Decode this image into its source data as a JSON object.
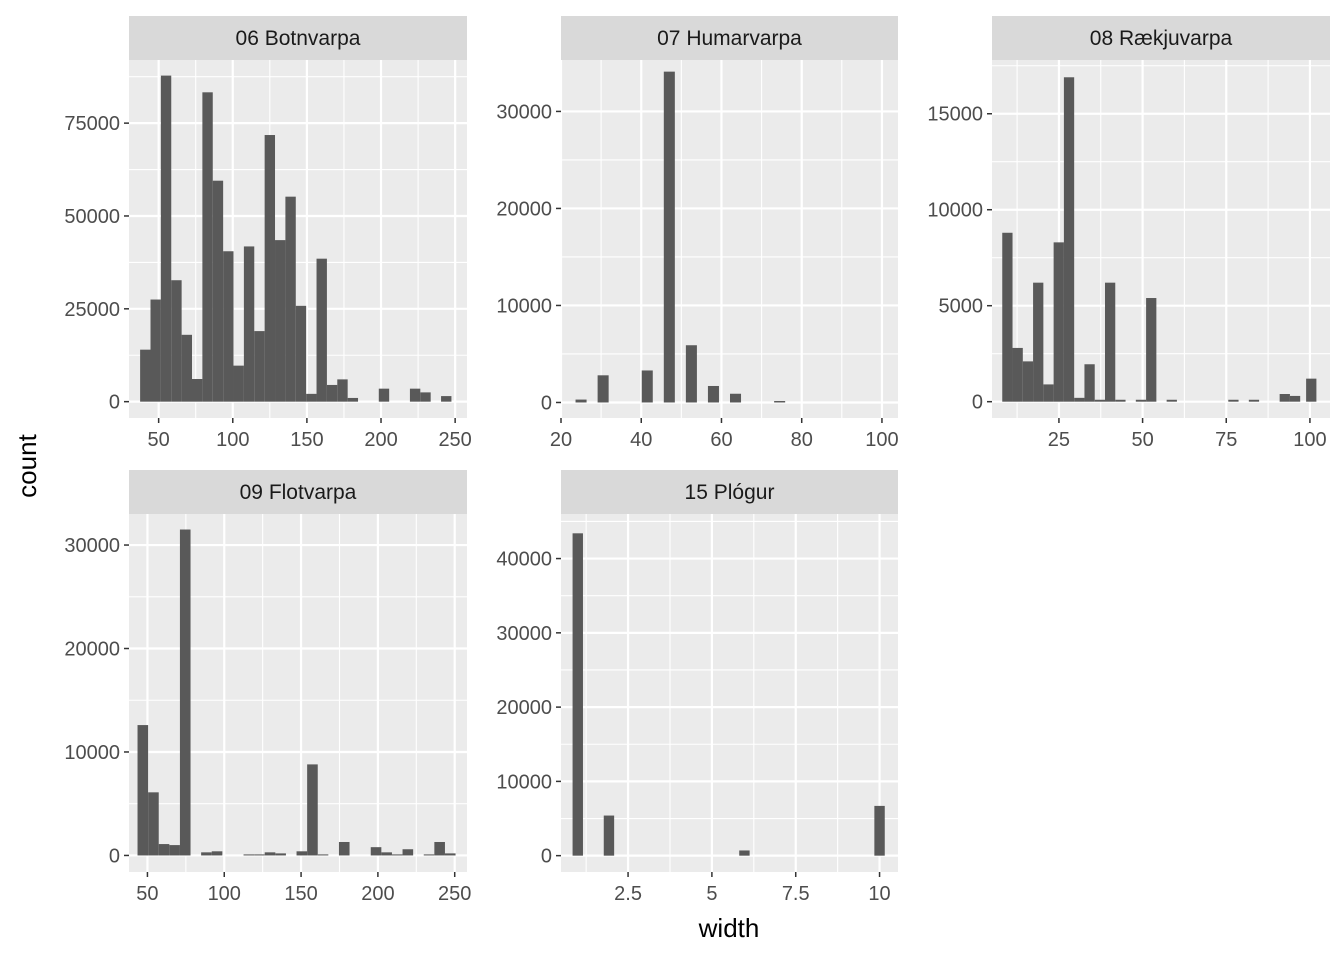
{
  "chart_data": {
    "type": "bar",
    "layout": "facet-wrap histogram",
    "xlabel": "width",
    "ylabel": "count",
    "colors": {
      "bar": "#595959",
      "panel_bg": "#EBEBEB",
      "strip_bg": "#D9D9D9",
      "grid": "#FFFFFF"
    },
    "panels": [
      {
        "title": "06 Botnvarpa",
        "xlim": [
          30,
          258
        ],
        "ylim": [
          -4400,
          92000
        ],
        "xticks": [
          50,
          100,
          150,
          200,
          250
        ],
        "xminor": [
          75,
          125,
          175,
          225
        ],
        "yticks": [
          0,
          25000,
          50000,
          75000
        ],
        "yminor": [
          12500,
          37500,
          62500,
          87500
        ],
        "bin_width": 7,
        "bin_centers": [
          41,
          48,
          55,
          62,
          69,
          76,
          83,
          90,
          97,
          104,
          111,
          118,
          125,
          132,
          139,
          146,
          153,
          160,
          167,
          174,
          181,
          188,
          195,
          202,
          209,
          216,
          223,
          230,
          237,
          244
        ],
        "values": [
          14000,
          27500,
          87800,
          32700,
          18000,
          6100,
          83300,
          59500,
          40500,
          9700,
          41800,
          19000,
          71800,
          43500,
          55200,
          25800,
          2100,
          38500,
          4500,
          6000,
          1000,
          0,
          0,
          3500,
          0,
          0,
          3500,
          2500,
          0,
          1500
        ]
      },
      {
        "title": "07 Humarvarpa",
        "xlim": [
          20,
          104
        ],
        "ylim": [
          -1600,
          35300
        ],
        "xticks": [
          20,
          40,
          60,
          80,
          100
        ],
        "xminor": [
          30,
          50,
          70,
          90
        ],
        "yticks": [
          0,
          10000,
          20000,
          30000
        ],
        "yminor": [
          5000,
          15000,
          25000
        ],
        "bin_width": 2.75,
        "bin_centers": [
          25,
          27.75,
          30.5,
          33.25,
          36,
          38.75,
          41.5,
          44.25,
          47,
          49.75,
          52.5,
          55.25,
          58,
          60.75,
          63.5,
          66.25,
          69,
          71.75,
          74.5,
          77.25,
          80,
          82.75,
          85.5,
          88.25,
          91,
          93.75,
          96.5,
          99.25
        ],
        "values": [
          300,
          0,
          2800,
          0,
          0,
          0,
          3300,
          0,
          34100,
          0,
          5900,
          0,
          1700,
          0,
          900,
          0,
          0,
          0,
          150,
          0,
          0,
          0,
          0,
          0,
          0,
          0,
          0,
          0
        ]
      },
      {
        "title": "08 Rækjuvarpa",
        "xlim": [
          5,
          106
        ],
        "ylim": [
          -850,
          17800
        ],
        "xticks": [
          25,
          50,
          75,
          100
        ],
        "xminor": [
          12.5,
          37.5,
          62.5,
          87.5
        ],
        "yticks": [
          0,
          5000,
          10000,
          15000
        ],
        "yminor": [
          2500,
          7500,
          12500,
          17500
        ],
        "bin_width": 3.07,
        "bin_centers": [
          9.6,
          12.67,
          15.74,
          18.81,
          21.88,
          24.95,
          28.02,
          31.09,
          34.16,
          37.23,
          40.3,
          43.37,
          46.44,
          49.51,
          52.58,
          55.65,
          58.72,
          61.79,
          64.86,
          67.93,
          71,
          74.07,
          77.14,
          80.21,
          83.28,
          86.35,
          89.42,
          92.49,
          95.56,
          98.63,
          100.4
        ],
        "values": [
          8800,
          2800,
          2100,
          6200,
          900,
          8300,
          16900,
          200,
          1950,
          100,
          6200,
          100,
          0,
          100,
          5400,
          0,
          100,
          0,
          0,
          0,
          0,
          0,
          100,
          0,
          100,
          0,
          0,
          400,
          300,
          0,
          1200
        ]
      },
      {
        "title": "09 Flotvarpa",
        "xlim": [
          38,
          258
        ],
        "ylim": [
          -1600,
          33000
        ],
        "xticks": [
          50,
          100,
          150,
          200,
          250
        ],
        "xminor": [
          75,
          125,
          175,
          225
        ],
        "yticks": [
          0,
          10000,
          20000,
          30000
        ],
        "yminor": [
          5000,
          15000,
          25000
        ],
        "bin_width": 6.9,
        "bin_centers": [
          47,
          53.9,
          60.8,
          67.7,
          74.6,
          81.5,
          88.4,
          95.3,
          102.2,
          109.1,
          116,
          122.9,
          129.8,
          136.7,
          143.6,
          150.5,
          157.4,
          164.3,
          171.2,
          178.1,
          185,
          191.9,
          198.8,
          205.7,
          212.6,
          219.5,
          226.4,
          233.3,
          240.2,
          247.1
        ],
        "values": [
          12600,
          6100,
          1100,
          1000,
          31500,
          0,
          300,
          400,
          0,
          0,
          100,
          100,
          300,
          200,
          0,
          400,
          8800,
          100,
          0,
          1300,
          0,
          0,
          800,
          300,
          100,
          600,
          0,
          100,
          1300,
          200
        ]
      },
      {
        "title": "15 Plógur",
        "xlim": [
          0.5,
          10.55
        ],
        "ylim": [
          -2200,
          46000
        ],
        "xticks": [
          2.5,
          5.0,
          7.5,
          10.0
        ],
        "xminor": [
          1.25,
          3.75,
          6.25,
          8.75
        ],
        "yticks": [
          0,
          10000,
          20000,
          30000,
          40000
        ],
        "yminor": [
          5000,
          15000,
          25000,
          35000,
          45000
        ],
        "bin_width": 0.31,
        "bin_centers": [
          1,
          1.93,
          5.97,
          10
        ],
        "values": [
          43400,
          5400,
          700,
          6700
        ]
      }
    ]
  }
}
